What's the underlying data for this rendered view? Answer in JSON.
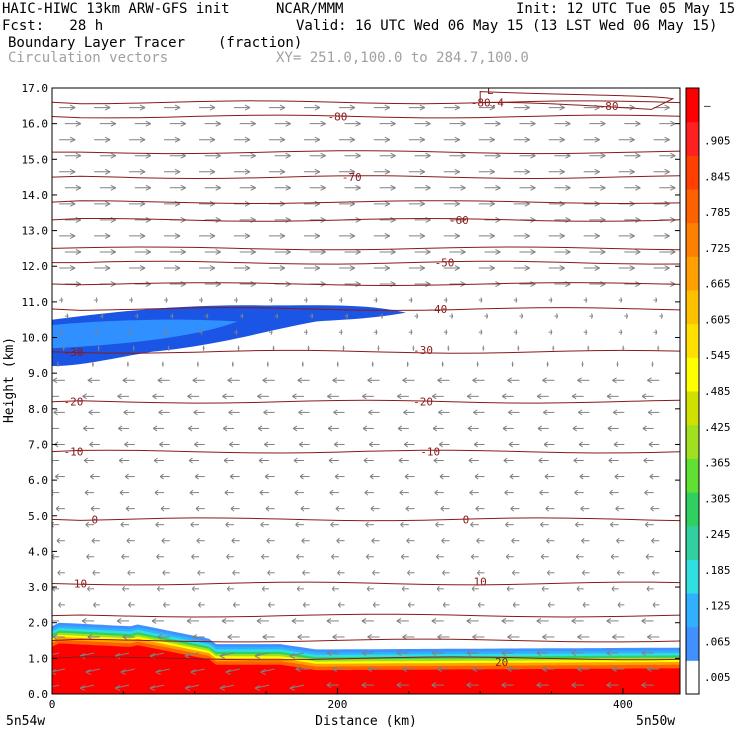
{
  "header": {
    "model": "HAIC-HIWC 13km ARW-GFS init",
    "org": "NCAR/MMM",
    "init": "Init: 12 UTC Tue 05 May 15",
    "fcst": "Fcst:   28 h",
    "valid": "Valid: 16 UTC Wed 06 May 15 (13 LST Wed 06 May 15)",
    "field": "Boundary Layer Tracer",
    "units": "(fraction)",
    "vectors": "Circulation vectors",
    "xy": "XY= 251.0,100.0 to 284.7,100.0"
  },
  "chart_data": {
    "type": "heatmap",
    "title": "Boundary Layer Tracer",
    "subtitle": "(fraction)",
    "xlabel": "Distance (km)",
    "ylabel": "Height (km)",
    "xlim": [
      0,
      440
    ],
    "ylim": [
      0,
      17
    ],
    "x_ticks": [
      "0",
      "200",
      "400"
    ],
    "x_end_labels": {
      "left": "5n54w",
      "right": "5n50w"
    },
    "y_ticks": [
      "0.0",
      "1.0",
      "2.0",
      "3.0",
      "4.0",
      "5.0",
      "6.0",
      "7.0",
      "8.0",
      "9.0",
      "10.0",
      "11.0",
      "12.0",
      "13.0",
      "14.0",
      "15.0",
      "16.0",
      "17.0"
    ],
    "colorbar": {
      "labels": [
        ".005",
        ".065",
        ".125",
        ".185",
        ".245",
        ".305",
        ".365",
        ".425",
        ".485",
        ".545",
        ".605",
        ".665",
        ".725",
        ".785",
        ".845",
        ".905",
        "–"
      ],
      "colors": [
        "#ffffff",
        "#4090ff",
        "#30b0ff",
        "#30e0e0",
        "#30d0a0",
        "#30d060",
        "#60e030",
        "#a0e020",
        "#d0e000",
        "#ffff00",
        "#ffe000",
        "#ffc000",
        "#ffa000",
        "#ff8000",
        "#ff6000",
        "#ff4000",
        "#ff2020",
        "#ff0000"
      ]
    },
    "temperature_contours": [
      {
        "label": "10",
        "height_km": 3.1
      },
      {
        "label": "0",
        "height_km": 4.9
      },
      {
        "label": "-10",
        "height_km": 6.8
      },
      {
        "label": "-20",
        "height_km": 8.2
      },
      {
        "label": "-30",
        "height_km": 9.6
      },
      {
        "label": "-40",
        "height_km": 10.8
      },
      {
        "label": "-50",
        "height_km": 12.1
      },
      {
        "label": "-60",
        "height_km": 13.3
      },
      {
        "label": "-70",
        "height_km": 14.5
      },
      {
        "label": "-80",
        "height_km": 16.2
      },
      {
        "label": "-80.4",
        "height_km": 16.6
      }
    ],
    "contour_extra_labels": [
      {
        "label": "20",
        "height_km": 0.9
      },
      {
        "label": "-80",
        "height_km": 16.5
      },
      {
        "label": "L",
        "height_km": 16.9
      }
    ],
    "tracer_regions": [
      {
        "name": "boundary layer",
        "x_range_km": [
          0,
          440
        ],
        "top_km": [
          1.9,
          1.3
        ],
        "max_value": 0.99
      },
      {
        "name": "upper layer",
        "x_range_km": [
          0,
          250
        ],
        "height_range_km": [
          9.2,
          10.9
        ],
        "max_value": 0.125
      }
    ],
    "wind_regimes": [
      {
        "height_range_km": [
          11.5,
          17.0
        ],
        "direction": "westerly"
      },
      {
        "height_range_km": [
          1.0,
          9.5
        ],
        "direction": "easterly"
      }
    ],
    "grid": false,
    "legend": "colorbar-right"
  }
}
